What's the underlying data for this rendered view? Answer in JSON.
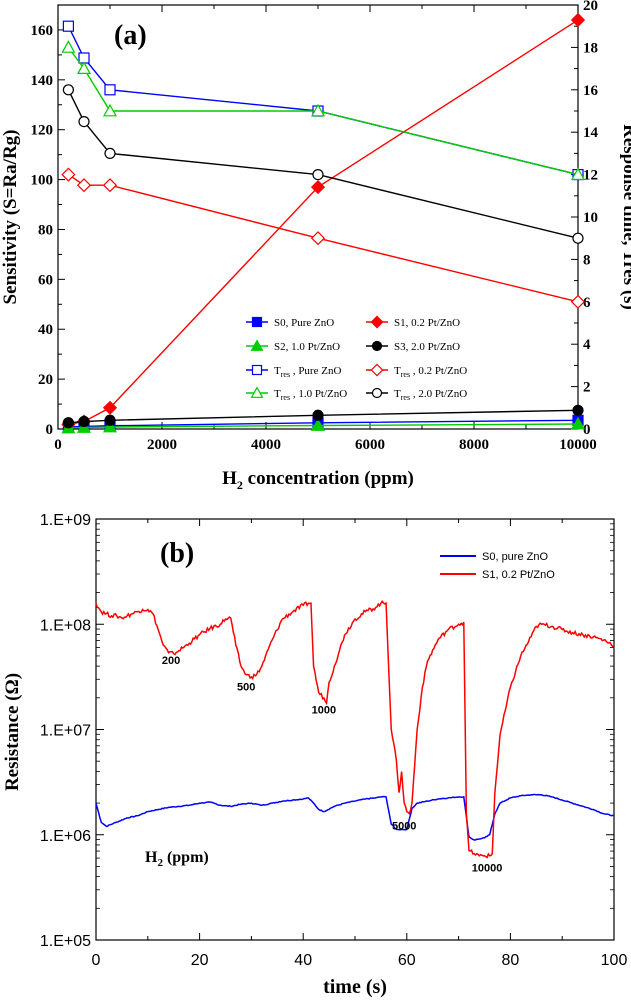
{
  "chart_data": [
    {
      "panel_label": "(a)",
      "type": "line",
      "xlabel_main": "H",
      "xlabel_sub": "2",
      "xlabel_rest": " concentration (ppm)",
      "ylabel_left": "Sensitivity (S=Ra/Rg)",
      "ylabel_right": "Response time, Tres (s)",
      "xlim": [
        0,
        10000
      ],
      "ylim_left": [
        0,
        170
      ],
      "ylim_right": [
        0,
        20
      ],
      "xticks": [
        0,
        2000,
        4000,
        6000,
        8000,
        10000
      ],
      "yticks_left": [
        0,
        20,
        40,
        60,
        80,
        100,
        120,
        140,
        160
      ],
      "yticks_right": [
        0,
        2,
        4,
        6,
        8,
        10,
        12,
        14,
        16,
        18,
        20
      ],
      "series": [
        {
          "name": "S0, Pure ZnO",
          "axis": "left",
          "color": "#0000ff",
          "marker": "square",
          "filled": true,
          "x": [
            200,
            500,
            1000,
            5000,
            10000
          ],
          "y": [
            0.8,
            1.0,
            1.3,
            2.5,
            3.5
          ]
        },
        {
          "name": "S1, 0.2 Pt/ZnO",
          "axis": "left",
          "color": "#ff0000",
          "marker": "diamond",
          "filled": true,
          "x": [
            200,
            500,
            1000,
            5000,
            10000
          ],
          "y": [
            1.8,
            3.0,
            8.5,
            97,
            164
          ]
        },
        {
          "name": "S2, 1.0 Pt/ZnO",
          "axis": "left",
          "color": "#00cc00",
          "marker": "triangle",
          "filled": true,
          "x": [
            200,
            500,
            1000,
            5000,
            10000
          ],
          "y": [
            0.4,
            0.6,
            0.8,
            1.4,
            2.0
          ]
        },
        {
          "name": "S3, 2.0 Pt/ZnO",
          "axis": "left",
          "color": "#000000",
          "marker": "circle",
          "filled": true,
          "x": [
            200,
            500,
            1000,
            5000,
            10000
          ],
          "y": [
            2.5,
            3.0,
            3.5,
            5.5,
            7.5
          ]
        },
        {
          "name": "Tres , Pure ZnO",
          "axis": "right",
          "color": "#0000ff",
          "marker": "square",
          "filled": false,
          "x": [
            200,
            500,
            1000,
            5000,
            10000
          ],
          "y": [
            19.0,
            17.5,
            16.0,
            15.0,
            12.0
          ]
        },
        {
          "name": "Tres , 0.2 Pt/ZnO",
          "axis": "right",
          "color": "#ff0000",
          "marker": "diamond",
          "filled": false,
          "x": [
            200,
            500,
            1000,
            5000,
            10000
          ],
          "y": [
            12.0,
            11.5,
            11.5,
            9.0,
            6.0
          ]
        },
        {
          "name": "Tres , 1.0 Pt/ZnO",
          "axis": "right",
          "color": "#00cc00",
          "marker": "triangle",
          "filled": false,
          "x": [
            200,
            500,
            1000,
            5000,
            10000
          ],
          "y": [
            18.0,
            17.0,
            15.0,
            15.0,
            12.0
          ]
        },
        {
          "name": "Tres , 2.0 Pt/ZnO",
          "axis": "right",
          "color": "#000000",
          "marker": "circle",
          "filled": false,
          "x": [
            200,
            500,
            1000,
            5000,
            10000
          ],
          "y": [
            16.0,
            14.5,
            13.0,
            12.0,
            9.0
          ]
        }
      ],
      "legend_location": "lower-right"
    },
    {
      "panel_label": "(b)",
      "type": "line",
      "xlabel": "time (s)",
      "ylabel": "Resistance (Ω)",
      "xlim": [
        0,
        100
      ],
      "ylim_log10": [
        5,
        9
      ],
      "yscale": "log",
      "xticks": [
        0,
        20,
        40,
        60,
        80,
        100
      ],
      "yticks": [
        {
          "exp": 5,
          "label": "1.E+05"
        },
        {
          "exp": 6,
          "label": "1.E+06"
        },
        {
          "exp": 7,
          "label": "1.E+07"
        },
        {
          "exp": 8,
          "label": "1.E+08"
        },
        {
          "exp": 9,
          "label": "1.E+09"
        }
      ],
      "series": [
        {
          "name": "S0, pure ZnO",
          "color": "#0000ff",
          "t": [
            0,
            1,
            2,
            4,
            6,
            8,
            10,
            12,
            14,
            16,
            18,
            20,
            22,
            24,
            26,
            28,
            30,
            32,
            34,
            36,
            38,
            40,
            41,
            42,
            43,
            44,
            46,
            48,
            50,
            52,
            54,
            55,
            56,
            57,
            58,
            59,
            60,
            61,
            62,
            64,
            66,
            68,
            70,
            71,
            72,
            73,
            74,
            75,
            76,
            77,
            78,
            80,
            82,
            84,
            86,
            88,
            90,
            92,
            94,
            96,
            98,
            100
          ],
          "log10R": [
            6.3,
            6.12,
            6.08,
            6.12,
            6.16,
            6.18,
            6.22,
            6.24,
            6.26,
            6.27,
            6.28,
            6.3,
            6.31,
            6.28,
            6.27,
            6.29,
            6.3,
            6.28,
            6.3,
            6.32,
            6.33,
            6.34,
            6.35,
            6.3,
            6.24,
            6.22,
            6.27,
            6.3,
            6.32,
            6.34,
            6.35,
            6.36,
            6.36,
            6.1,
            6.05,
            6.05,
            6.05,
            6.25,
            6.3,
            6.32,
            6.34,
            6.35,
            6.36,
            6.36,
            5.98,
            5.95,
            5.96,
            5.97,
            6.0,
            6.2,
            6.3,
            6.35,
            6.37,
            6.38,
            6.38,
            6.36,
            6.33,
            6.3,
            6.27,
            6.24,
            6.2,
            6.18
          ]
        },
        {
          "name": "S1, 0.2 Pt/ZnO",
          "color": "#ff0000",
          "t": [
            0,
            1,
            2,
            3,
            4,
            5,
            6,
            7,
            8,
            9,
            10,
            11,
            12,
            13,
            14,
            15,
            16,
            18,
            20,
            22,
            24,
            25,
            26,
            27,
            28,
            29,
            30,
            31,
            32,
            34,
            36,
            38,
            40,
            41,
            41.5,
            42,
            43,
            44,
            44.5,
            45,
            46,
            47,
            48,
            50,
            52,
            54,
            55,
            56,
            57,
            58,
            58.5,
            59,
            59.5,
            60,
            60.5,
            61,
            62,
            63,
            64,
            66,
            68,
            70,
            71,
            71.5,
            72,
            73,
            74,
            75,
            76,
            76.5,
            77,
            78,
            80,
            82,
            84,
            85,
            86,
            88,
            90,
            92,
            94,
            96,
            98,
            100
          ],
          "log10R": [
            8.2,
            8.12,
            8.1,
            8.08,
            8.08,
            8.06,
            8.08,
            8.1,
            8.12,
            8.14,
            8.14,
            8.1,
            7.95,
            7.8,
            7.73,
            7.72,
            7.75,
            7.82,
            7.9,
            7.96,
            8.0,
            8.05,
            8.06,
            7.8,
            7.6,
            7.52,
            7.5,
            7.52,
            7.6,
            7.85,
            8.05,
            8.12,
            8.18,
            8.2,
            8.2,
            7.6,
            7.35,
            7.3,
            7.25,
            7.45,
            7.6,
            7.75,
            7.9,
            8.05,
            8.12,
            8.16,
            8.2,
            8.2,
            7.0,
            6.7,
            6.4,
            6.6,
            6.3,
            6.22,
            6.2,
            6.3,
            7.0,
            7.4,
            7.65,
            7.85,
            7.95,
            8.0,
            8.02,
            6.2,
            5.85,
            5.82,
            5.8,
            5.8,
            5.8,
            5.82,
            6.4,
            6.95,
            7.4,
            7.7,
            7.88,
            7.98,
            8.0,
            7.98,
            7.95,
            7.92,
            7.9,
            7.88,
            7.85,
            7.8
          ]
        }
      ],
      "annotations": [
        {
          "text": "200",
          "x": 14.5,
          "log10R": 7.62
        },
        {
          "text": "500",
          "x": 29,
          "log10R": 7.37
        },
        {
          "text": "1000",
          "x": 44,
          "log10R": 7.15
        },
        {
          "text": "5000",
          "x": 59.5,
          "log10R": 6.05
        },
        {
          "text": "10000",
          "x": 75.5,
          "log10R": 5.65
        }
      ],
      "inline_label_main": "H",
      "inline_label_sub": "2",
      "inline_label_rest": "  (ppm)",
      "legend_location": "top-right"
    }
  ]
}
